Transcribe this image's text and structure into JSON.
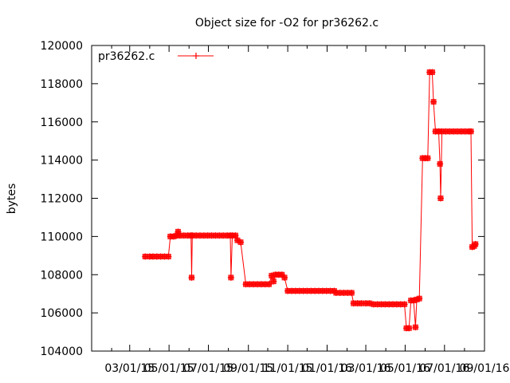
{
  "chart_data": {
    "type": "line",
    "title": "Object size for -O2 for pr36262.c",
    "xlabel": "",
    "ylabel": "bytes",
    "legend": {
      "position": "top-left",
      "entries": [
        "pr36262.c"
      ]
    },
    "grid": false,
    "xlim": [
      "2015-01-01",
      "2016-09-01"
    ],
    "ylim": [
      104000,
      120000
    ],
    "x_tick_labels": [
      "03/01/15",
      "05/01/15",
      "07/01/15",
      "09/01/15",
      "11/01/15",
      "01/01/16",
      "03/01/16",
      "05/01/16",
      "07/01/16",
      "09/01/16"
    ],
    "x_tick_dates": [
      "2015-03-01",
      "2015-05-01",
      "2015-07-01",
      "2015-09-01",
      "2015-11-01",
      "2016-01-01",
      "2016-03-01",
      "2016-05-01",
      "2016-07-01",
      "2016-09-01"
    ],
    "y_ticks": [
      104000,
      106000,
      108000,
      110000,
      112000,
      114000,
      116000,
      118000,
      120000
    ],
    "y_tick_labels": [
      "104000",
      "106000",
      "108000",
      "110000",
      "112000",
      "114000",
      "116000",
      "118000",
      "120000"
    ],
    "series": [
      {
        "name": "pr36262.c",
        "color": "#ff0000",
        "points": [
          [
            "2015-03-25",
            108950
          ],
          [
            "2015-04-01",
            108950
          ],
          [
            "2015-04-06",
            108950
          ],
          [
            "2015-04-12",
            108950
          ],
          [
            "2015-04-18",
            108950
          ],
          [
            "2015-04-24",
            108950
          ],
          [
            "2015-04-30",
            108950
          ],
          [
            "2015-05-03",
            110000
          ],
          [
            "2015-05-08",
            110000
          ],
          [
            "2015-05-13",
            110050
          ],
          [
            "2015-05-15",
            110250
          ],
          [
            "2015-05-18",
            110050
          ],
          [
            "2015-05-24",
            110050
          ],
          [
            "2015-05-30",
            110050
          ],
          [
            "2015-06-04",
            110050
          ],
          [
            "2015-06-05",
            107850
          ],
          [
            "2015-06-06",
            110050
          ],
          [
            "2015-06-12",
            110050
          ],
          [
            "2015-06-18",
            110050
          ],
          [
            "2015-06-24",
            110050
          ],
          [
            "2015-06-30",
            110050
          ],
          [
            "2015-07-06",
            110050
          ],
          [
            "2015-07-12",
            110050
          ],
          [
            "2015-07-18",
            110050
          ],
          [
            "2015-07-24",
            110050
          ],
          [
            "2015-07-30",
            110050
          ],
          [
            "2015-08-04",
            110050
          ],
          [
            "2015-08-05",
            107850
          ],
          [
            "2015-08-07",
            110050
          ],
          [
            "2015-08-12",
            110050
          ],
          [
            "2015-08-15",
            109800
          ],
          [
            "2015-08-20",
            109700
          ],
          [
            "2015-08-28",
            107500
          ],
          [
            "2015-09-03",
            107500
          ],
          [
            "2015-09-09",
            107500
          ],
          [
            "2015-09-15",
            107500
          ],
          [
            "2015-09-21",
            107500
          ],
          [
            "2015-09-27",
            107500
          ],
          [
            "2015-10-03",
            107500
          ],
          [
            "2015-10-07",
            107950
          ],
          [
            "2015-10-10",
            107650
          ],
          [
            "2015-10-13",
            108000
          ],
          [
            "2015-10-18",
            108000
          ],
          [
            "2015-10-23",
            108000
          ],
          [
            "2015-10-27",
            107850
          ],
          [
            "2015-11-01",
            107150
          ],
          [
            "2015-11-07",
            107150
          ],
          [
            "2015-11-13",
            107150
          ],
          [
            "2015-11-19",
            107150
          ],
          [
            "2015-11-25",
            107150
          ],
          [
            "2015-12-01",
            107150
          ],
          [
            "2015-12-07",
            107150
          ],
          [
            "2015-12-13",
            107150
          ],
          [
            "2015-12-19",
            107150
          ],
          [
            "2015-12-25",
            107150
          ],
          [
            "2015-12-31",
            107150
          ],
          [
            "2016-01-06",
            107150
          ],
          [
            "2016-01-12",
            107150
          ],
          [
            "2016-01-15",
            107050
          ],
          [
            "2016-01-21",
            107050
          ],
          [
            "2016-01-27",
            107050
          ],
          [
            "2016-02-02",
            107050
          ],
          [
            "2016-02-08",
            107050
          ],
          [
            "2016-02-11",
            106500
          ],
          [
            "2016-02-17",
            106500
          ],
          [
            "2016-02-23",
            106500
          ],
          [
            "2016-03-01",
            106500
          ],
          [
            "2016-03-07",
            106500
          ],
          [
            "2016-03-13",
            106450
          ],
          [
            "2016-03-19",
            106450
          ],
          [
            "2016-03-25",
            106450
          ],
          [
            "2016-03-31",
            106450
          ],
          [
            "2016-04-06",
            106450
          ],
          [
            "2016-04-12",
            106450
          ],
          [
            "2016-04-18",
            106450
          ],
          [
            "2016-04-24",
            106450
          ],
          [
            "2016-04-30",
            106450
          ],
          [
            "2016-05-03",
            105200
          ],
          [
            "2016-05-07",
            105200
          ],
          [
            "2016-05-10",
            106650
          ],
          [
            "2016-05-14",
            106650
          ],
          [
            "2016-05-17",
            105250
          ],
          [
            "2016-05-19",
            106700
          ],
          [
            "2016-05-23",
            106750
          ],
          [
            "2016-05-28",
            114100
          ],
          [
            "2016-06-01",
            114100
          ],
          [
            "2016-06-05",
            114100
          ],
          [
            "2016-06-08",
            118600
          ],
          [
            "2016-06-12",
            118600
          ],
          [
            "2016-06-14",
            117050
          ],
          [
            "2016-06-17",
            115500
          ],
          [
            "2016-06-22",
            115500
          ],
          [
            "2016-06-24",
            113800
          ],
          [
            "2016-06-25",
            112000
          ],
          [
            "2016-06-27",
            115500
          ],
          [
            "2016-07-03",
            115500
          ],
          [
            "2016-07-09",
            115500
          ],
          [
            "2016-07-15",
            115500
          ],
          [
            "2016-07-21",
            115500
          ],
          [
            "2016-07-27",
            115500
          ],
          [
            "2016-08-02",
            115500
          ],
          [
            "2016-08-08",
            115500
          ],
          [
            "2016-08-11",
            115500
          ],
          [
            "2016-08-13",
            109450
          ],
          [
            "2016-08-16",
            109500
          ],
          [
            "2016-08-18",
            109600
          ]
        ]
      }
    ]
  }
}
